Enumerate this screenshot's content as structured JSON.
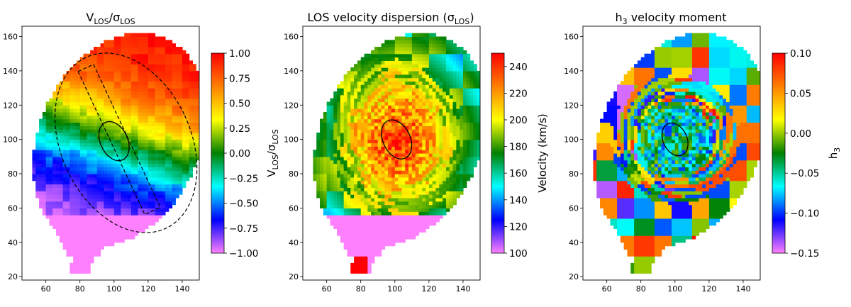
{
  "figure": {
    "description_free": true
  },
  "colors": {
    "cmap": [
      "#ff80ff",
      "#0000ff",
      "#00ffff",
      "#008000",
      "#ffff00",
      "#ff8000",
      "#ff0000"
    ],
    "outline": "#000000",
    "background": "#ffffff"
  },
  "chart_data": [
    {
      "type": "heatmap",
      "title_main": "V",
      "title_sub1": "LOS",
      "title_mid": "/σ",
      "title_sub2": "LOS",
      "xlim": [
        46,
        150
      ],
      "ylim": [
        18,
        166
      ],
      "x_ticks": [
        "60",
        "80",
        "100",
        "120",
        "140"
      ],
      "y_ticks": [
        "20",
        "40",
        "60",
        "80",
        "100",
        "120",
        "140",
        "160"
      ],
      "colorbar": {
        "min": -1.0,
        "max": 1.0,
        "ticks": [
          "1.00",
          "0.75",
          "0.50",
          "0.25",
          "0.00",
          "−0.25",
          "−0.50",
          "−0.75",
          "−1.00"
        ],
        "label_main": "V",
        "label_sub1": "LOS",
        "label_mid": "/σ",
        "label_sub2": "LOS"
      },
      "field": "rotation",
      "overlays": {
        "inner_ellipse": {
          "cx": 100,
          "cy": 99,
          "rx": 8,
          "ry": 12,
          "angle_deg": -25
        },
        "outer_ellipse": {
          "cx": 107,
          "cy": 98,
          "rx": 38,
          "ry": 55,
          "angle_deg": -25
        },
        "slit_rectangle": {
          "cx": 103,
          "cy": 100,
          "w": 10,
          "h": 92,
          "angle_deg": -25
        }
      }
    },
    {
      "type": "heatmap",
      "title_main": "LOS velocity dispersion (σ",
      "title_sub": "LOS",
      "title_end": ")",
      "xlim": [
        46,
        150
      ],
      "ylim": [
        18,
        166
      ],
      "x_ticks": [
        "60",
        "80",
        "100",
        "120",
        "140"
      ],
      "y_ticks": [
        "20",
        "40",
        "60",
        "80",
        "100",
        "120",
        "140",
        "160"
      ],
      "colorbar": {
        "min": 100,
        "max": 250,
        "ticks": [
          "240",
          "220",
          "200",
          "180",
          "160",
          "140",
          "120",
          "100"
        ],
        "label": "Velocity (km/s)"
      },
      "field": "dispersion",
      "overlays": {
        "inner_ellipse": {
          "cx": 101,
          "cy": 100,
          "rx": 8,
          "ry": 12,
          "angle_deg": -25
        }
      }
    },
    {
      "type": "heatmap",
      "title_main": "h",
      "title_sub": "3",
      "title_end": " velocity moment",
      "xlim": [
        46,
        150
      ],
      "ylim": [
        18,
        166
      ],
      "x_ticks": [
        "60",
        "80",
        "100",
        "120",
        "140"
      ],
      "y_ticks": [
        "20",
        "40",
        "60",
        "80",
        "100",
        "120",
        "140",
        "160"
      ],
      "colorbar": {
        "min": -0.15,
        "max": 0.1,
        "ticks": [
          "0.10",
          "0.05",
          "0.00",
          "−0.05",
          "−0.10",
          "−0.15"
        ],
        "label_main": "h",
        "label_sub": "3"
      },
      "field": "h3",
      "overlays": {
        "inner_ellipse": {
          "cx": 100,
          "cy": 100,
          "rx": 7,
          "ry": 10,
          "angle_deg": -25
        }
      }
    }
  ]
}
